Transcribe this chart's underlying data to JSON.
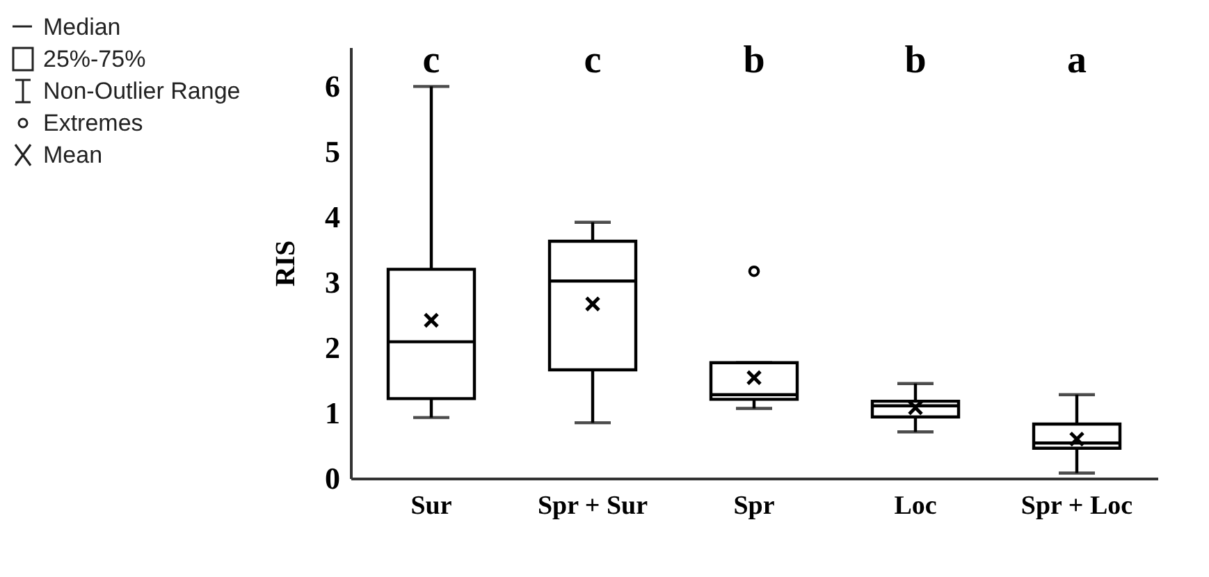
{
  "chart_data": {
    "type": "box",
    "ylabel": "RIS",
    "categories": [
      "Sur",
      "Spr + Sur",
      "Spr",
      "Loc",
      "Spr + Loc"
    ],
    "boxes": [
      {
        "low": 0.93,
        "q1": 1.22,
        "median": 2.09,
        "q3": 3.2,
        "high": 6.0,
        "mean": 2.42
      },
      {
        "low": 0.85,
        "q1": 1.66,
        "median": 3.02,
        "q3": 3.63,
        "high": 3.92,
        "mean": 2.67
      },
      {
        "low": 1.07,
        "q1": 1.21,
        "median": 1.28,
        "q3": 1.77,
        "high": 1.77,
        "mean": 1.54,
        "outliers": [
          3.17
        ]
      },
      {
        "low": 0.71,
        "q1": 0.94,
        "median": 1.11,
        "q3": 1.18,
        "high": 1.45,
        "mean": 1.08
      },
      {
        "low": 0.08,
        "q1": 0.46,
        "median": 0.54,
        "q3": 0.83,
        "high": 1.28,
        "mean": 0.6
      }
    ],
    "ylim": [
      0,
      6.6
    ],
    "yticks": [
      0,
      1,
      2,
      3,
      4,
      5,
      6
    ],
    "grid": false,
    "annotations": [
      "c",
      "c",
      "b",
      "b",
      "a",
      "Median",
      "25%-75%",
      "Non-Outlier Range",
      "Extremes",
      "Mean"
    ]
  }
}
